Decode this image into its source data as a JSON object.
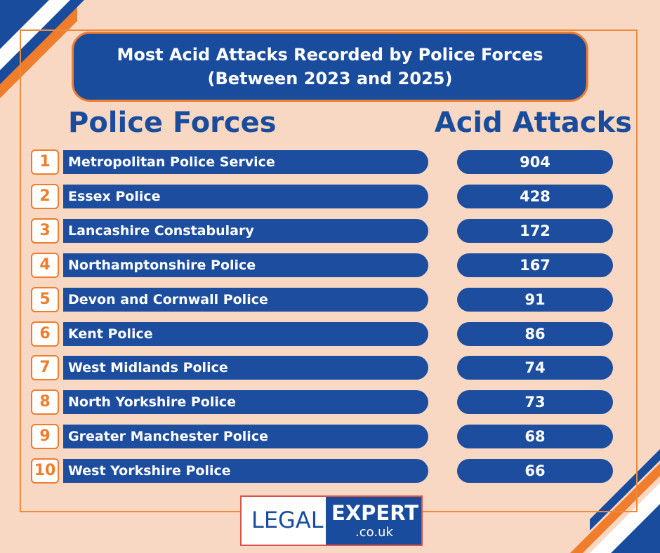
{
  "header": {
    "title_lines": [
      "Most Acid Attacks Recorded by Police Forces",
      "(Between 2023 and 2025)"
    ]
  },
  "table": {
    "columns": [
      "Police Forces",
      "Acid Attacks"
    ],
    "rows": [
      {
        "rank": 1,
        "force": "Metropolitan Police Service",
        "attacks": 904
      },
      {
        "rank": 2,
        "force": "Essex Police",
        "attacks": 428
      },
      {
        "rank": 3,
        "force": "Lancashire Constabulary",
        "attacks": 172
      },
      {
        "rank": 4,
        "force": "Northamptonshire Police",
        "attacks": 167
      },
      {
        "rank": 5,
        "force": "Devon and Cornwall Police",
        "attacks": 91
      },
      {
        "rank": 6,
        "force": "Kent Police",
        "attacks": 86
      },
      {
        "rank": 7,
        "force": "West Midlands Police",
        "attacks": 74
      },
      {
        "rank": 8,
        "force": "North Yorkshire Police",
        "attacks": 73
      },
      {
        "rank": 9,
        "force": "Greater Manchester Police",
        "attacks": 68
      },
      {
        "rank": 10,
        "force": "West Yorkshire Police",
        "attacks": 66
      }
    ]
  },
  "logo": {
    "left": "LEGAL",
    "right": "EXPERT",
    "domain": ".co.uk"
  }
}
